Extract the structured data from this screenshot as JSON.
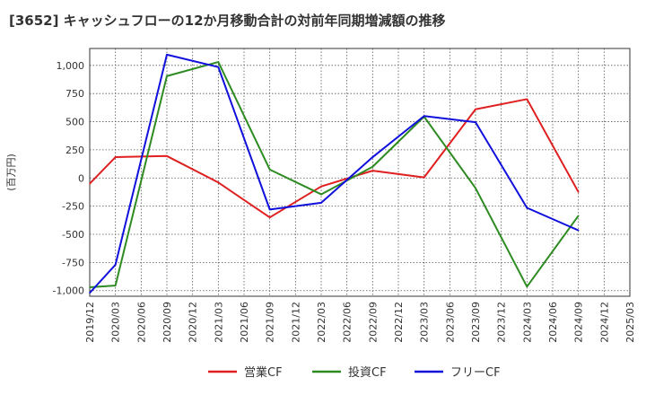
{
  "chart_data": {
    "type": "line",
    "title": "[3652]  キャッシュフローの12か月移動合計の対前年同期増減額の推移",
    "ylabel": "(百万円)",
    "xlabel": "",
    "x": [
      "2019/12",
      "2020/03",
      "2020/06",
      "2020/09",
      "2020/12",
      "2021/03",
      "2021/06",
      "2021/09",
      "2021/12",
      "2022/03",
      "2022/06",
      "2022/09",
      "2022/12",
      "2023/03",
      "2023/06",
      "2023/09",
      "2023/12",
      "2024/03",
      "2024/06",
      "2024/09",
      "2024/12",
      "2025/03"
    ],
    "y_ticks": [
      1000,
      750,
      500,
      250,
      0,
      -250,
      -500,
      -750,
      -1000
    ],
    "y_tick_labels": [
      "1,000",
      "750",
      "500",
      "250",
      "0",
      "-250",
      "-500",
      "-750",
      "-1,000"
    ],
    "ylim": [
      -1050,
      1150
    ],
    "grid": true,
    "legend_position": "bottom",
    "series": [
      {
        "name": "営業CF",
        "color": "#e02020",
        "values": [
          -50,
          185,
          null,
          195,
          null,
          -40,
          null,
          -350,
          null,
          -75,
          null,
          65,
          null,
          5,
          null,
          610,
          null,
          700,
          null,
          -125,
          null,
          null
        ]
      },
      {
        "name": "投資CF",
        "color": "#2e8b22",
        "values": [
          -970,
          -955,
          null,
          905,
          null,
          1030,
          null,
          75,
          null,
          -145,
          null,
          100,
          null,
          545,
          null,
          -90,
          null,
          -965,
          null,
          -335,
          null,
          null
        ]
      },
      {
        "name": "フリーCF",
        "color": "#1010dd",
        "values": [
          -1020,
          -770,
          null,
          1095,
          null,
          985,
          null,
          -280,
          null,
          -220,
          null,
          185,
          null,
          550,
          null,
          495,
          null,
          -265,
          null,
          -465,
          null,
          null
        ]
      }
    ]
  }
}
